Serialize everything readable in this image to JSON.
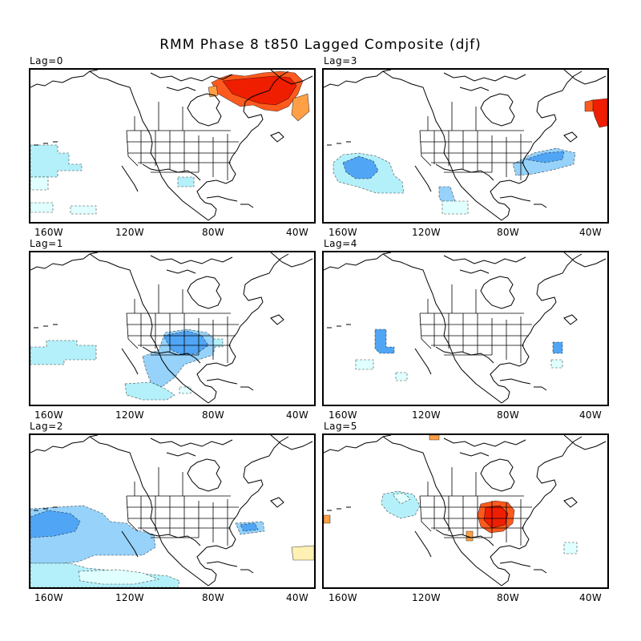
{
  "title": "RMM Phase 8 t850 Lagged Composite (djf)",
  "colors": {
    "light_cyan": "#e0ffff",
    "light_blue": "#b4f0fa",
    "mid_blue": "#96d2fa",
    "blue": "#50a5f5",
    "dark_blue": "#1e6eeb",
    "pale_yellow": "#fff0b4",
    "orange": "#ffa046",
    "red_orange": "#ff5a1e",
    "red": "#f01e00"
  },
  "chart_data": [
    {
      "type": "heatmap",
      "label": "Lag=0",
      "x_ticks": [
        "160W",
        "120W",
        "80W",
        "40W"
      ],
      "features": [
        "warm anomaly over Hudson Bay / Labrador",
        "weak cool anomaly central Pacific",
        "weak cool anomaly Gulf of Mexico"
      ]
    },
    {
      "type": "heatmap",
      "label": "Lag=1",
      "x_ticks": [
        "160W",
        "120W",
        "80W",
        "40W"
      ],
      "features": [
        "cool anomaly central and southern United States",
        "cool anomaly Mexico",
        "weak cool anomaly central Pacific"
      ]
    },
    {
      "type": "heatmap",
      "label": "Lag=2",
      "x_ticks": [
        "160W",
        "120W",
        "80W",
        "40W"
      ],
      "features": [
        "cool anomaly northeast Pacific",
        "cool anomaly off Atlantic coast",
        "weak warm anomaly central Atlantic"
      ]
    },
    {
      "type": "heatmap",
      "label": "Lag=3",
      "x_ticks": [
        "160W",
        "120W",
        "80W",
        "40W"
      ],
      "features": [
        "warm anomaly near Greenland",
        "cool anomaly northeast Pacific",
        "cool anomaly western Atlantic",
        "cool anomaly Baja California"
      ]
    },
    {
      "type": "heatmap",
      "label": "Lag=4",
      "x_ticks": [
        "160W",
        "120W",
        "80W",
        "40W"
      ],
      "features": [
        "small cool anomaly northeast Pacific",
        "small cool anomaly central Atlantic"
      ]
    },
    {
      "type": "heatmap",
      "label": "Lag=5",
      "x_ticks": [
        "160W",
        "120W",
        "80W",
        "40W"
      ],
      "features": [
        "warm anomaly eastern United States",
        "cool anomaly northeast Pacific"
      ]
    }
  ]
}
